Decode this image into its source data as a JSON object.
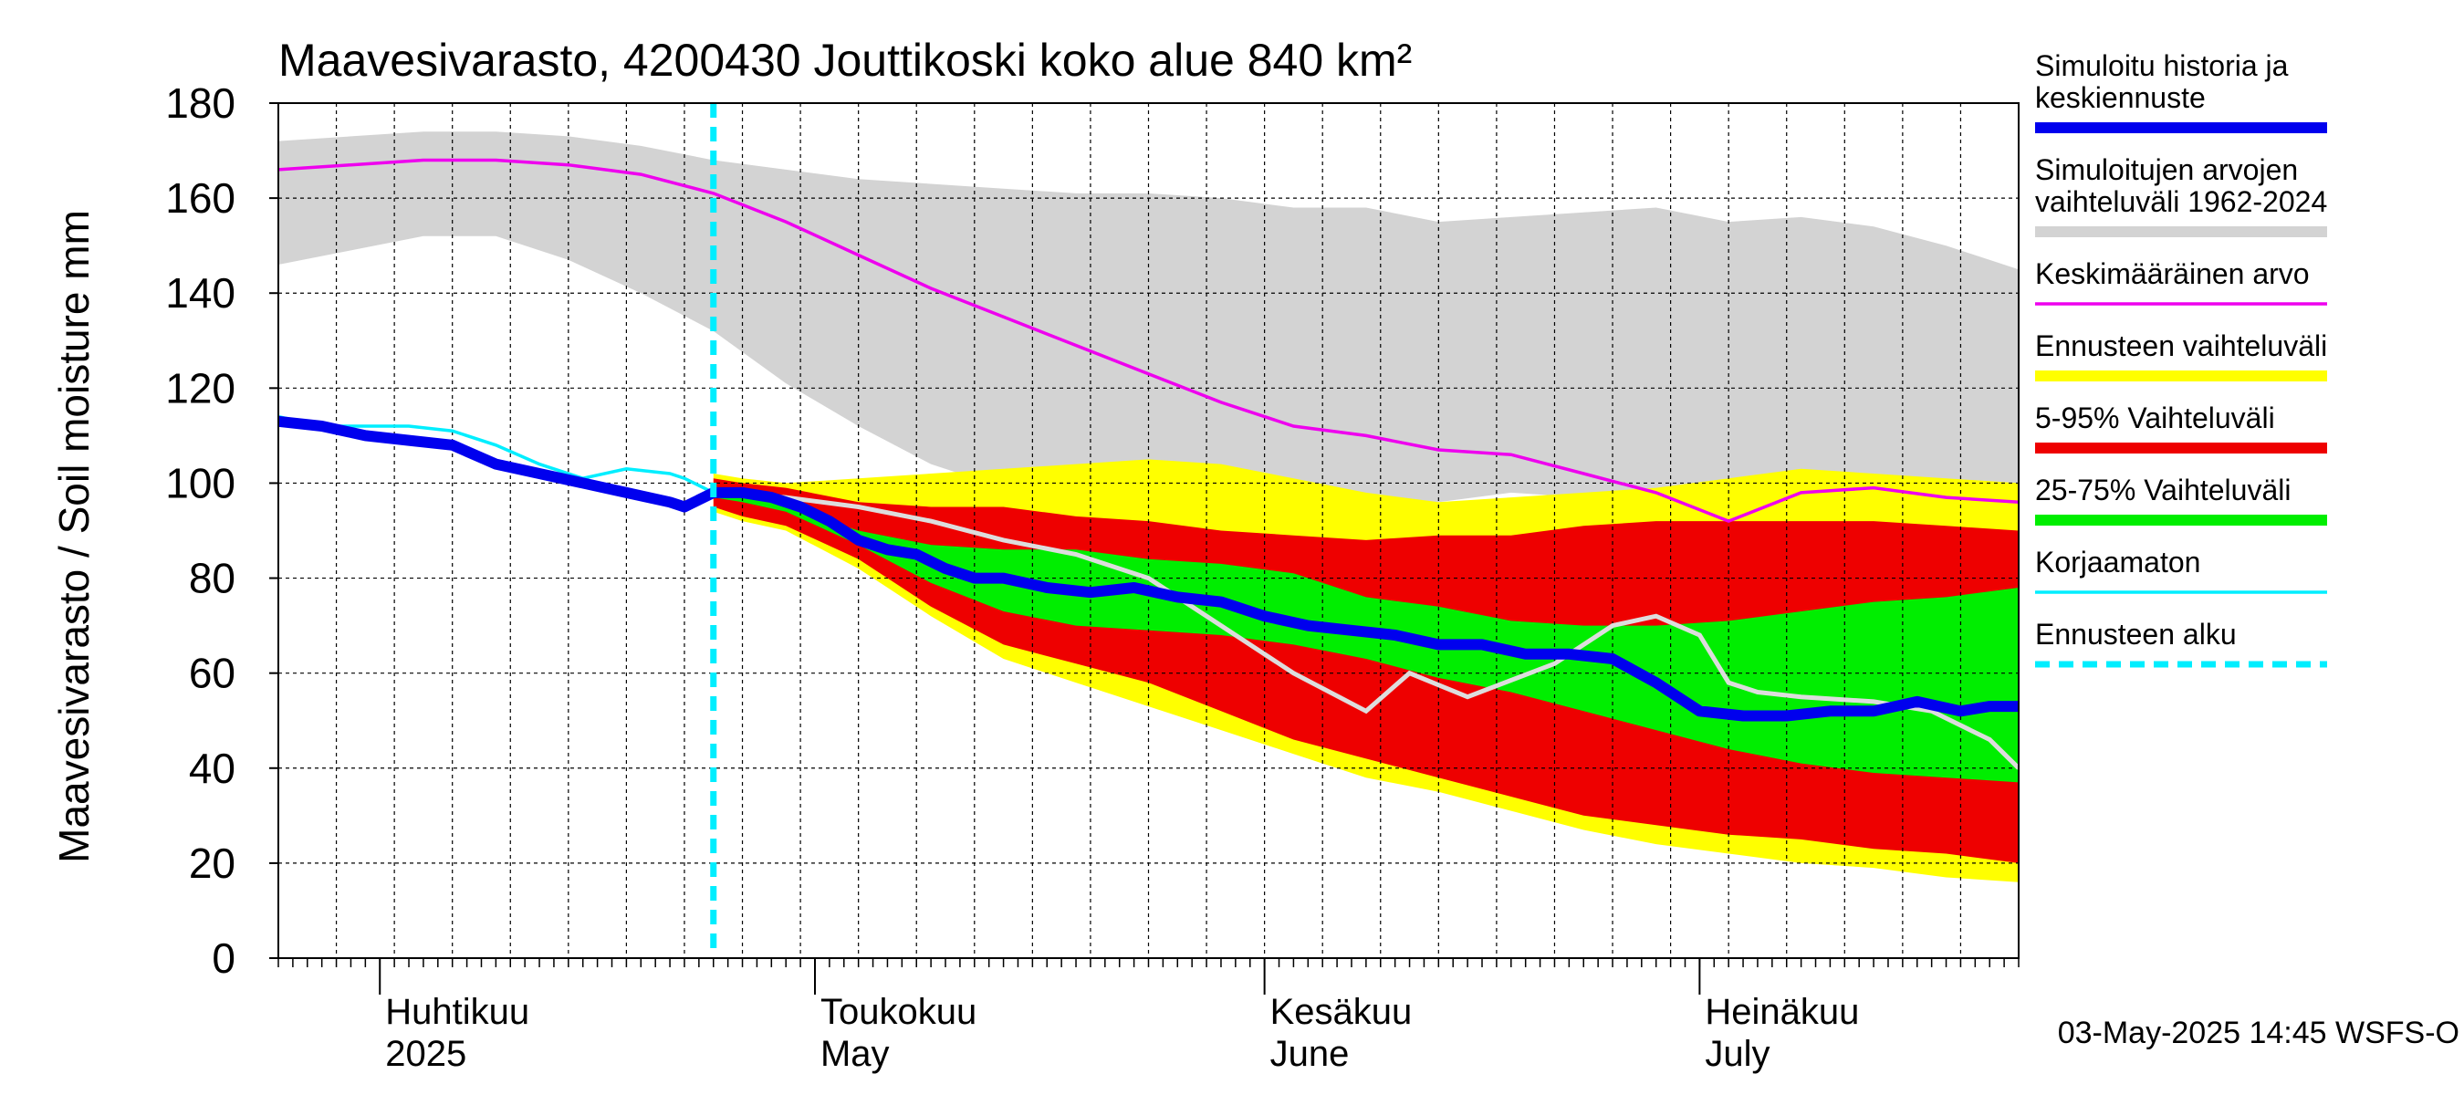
{
  "colors": {
    "history": "#0000ee",
    "range": "#d3d3d3",
    "mean": "#ee00ee",
    "forecast_range": "#ffff00",
    "p5_95": "#ee0000",
    "p25_75": "#00ee00",
    "uncorrected": "#00eeff",
    "forecast_start": "#00eeff",
    "gray_line": "#dddddd"
  },
  "chart_data": {
    "type": "area",
    "title": "Maavesivarasto, 4200430 Jouttikoski koko alue 840 km²",
    "ylabel": "Maavesivarasto / Soil moisture   mm",
    "ylim": [
      0,
      180
    ],
    "yticks": [
      "0",
      "20",
      "40",
      "60",
      "80",
      "100",
      "120",
      "140",
      "160",
      "180"
    ],
    "x_domain_days": [
      0,
      120
    ],
    "x_note": "x = days since 2025-03-25",
    "month_ticks": [
      {
        "fi": "Huhtikuu",
        "en": "2025",
        "x": 7
      },
      {
        "fi": "Toukokuu",
        "en": "May",
        "x": 37
      },
      {
        "fi": "Kesäkuu",
        "en": "June",
        "x": 68
      },
      {
        "fi": "Heinäkuu",
        "en": "July",
        "x": 98
      }
    ],
    "forecast_start_x": 30,
    "footer": "03-May-2025 14:45 WSFS-O",
    "legend": [
      {
        "key": "history",
        "label": "Simuloitu historia ja keskiennuste",
        "lines": [
          "Simuloitu historia ja",
          "keskiennuste"
        ],
        "style": "thick"
      },
      {
        "key": "range",
        "label": "Simuloitujen arvojen vaihteluväli 1962-2024",
        "lines": [
          "Simuloitujen arvojen",
          "vaihteluväli 1962-2024"
        ],
        "style": "thick"
      },
      {
        "key": "mean",
        "label": "Keskimääräinen arvo",
        "lines": [
          "Keskimääräinen arvo"
        ],
        "style": "thin"
      },
      {
        "key": "forecast_range",
        "label": "Ennusteen vaihteluväli",
        "lines": [
          "Ennusteen vaihteluväli"
        ],
        "style": "thick"
      },
      {
        "key": "p5_95",
        "label": "5-95% Vaihteluväli",
        "lines": [
          "5-95% Vaihteluväli"
        ],
        "style": "thick"
      },
      {
        "key": "p25_75",
        "label": "25-75% Vaihteluväli",
        "lines": [
          "25-75% Vaihteluväli"
        ],
        "style": "thick"
      },
      {
        "key": "uncorrected",
        "label": "Korjaamaton",
        "lines": [
          "Korjaamaton"
        ],
        "style": "thin"
      },
      {
        "key": "forecast_start",
        "label": "Ennusteen alku",
        "lines": [
          "Ennusteen alku"
        ],
        "style": "dashed"
      }
    ],
    "series": {
      "range_upper": {
        "x": [
          0,
          5,
          10,
          15,
          20,
          25,
          30,
          35,
          40,
          45,
          50,
          55,
          60,
          65,
          70,
          75,
          80,
          85,
          90,
          95,
          100,
          105,
          110,
          115,
          120
        ],
        "y": [
          172,
          173,
          174,
          174,
          173,
          171,
          168,
          166,
          164,
          163,
          162,
          161,
          161,
          160,
          158,
          158,
          155,
          156,
          157,
          158,
          155,
          156,
          154,
          150,
          145
        ]
      },
      "range_lower": {
        "x": [
          0,
          5,
          10,
          15,
          20,
          25,
          30,
          35,
          40,
          45,
          50,
          55,
          60,
          65,
          70,
          75,
          80,
          85,
          90,
          95,
          100,
          105,
          110,
          115,
          120
        ],
        "y": [
          146,
          149,
          152,
          152,
          147,
          140,
          132,
          121,
          112,
          104,
          99,
          97,
          95,
          93,
          95,
          95,
          96,
          98,
          97,
          97,
          95,
          95,
          95,
          94,
          94
        ]
      },
      "mean": {
        "x": [
          0,
          5,
          10,
          15,
          20,
          25,
          30,
          35,
          40,
          45,
          50,
          55,
          60,
          65,
          70,
          75,
          80,
          85,
          90,
          95,
          100,
          105,
          110,
          115,
          120
        ],
        "y": [
          166,
          167,
          168,
          168,
          167,
          165,
          161,
          155,
          148,
          141,
          135,
          129,
          123,
          117,
          112,
          110,
          107,
          106,
          102,
          98,
          92,
          98,
          99,
          97,
          96
        ]
      },
      "history_mean": {
        "x": [
          0,
          3,
          6,
          9,
          12,
          15,
          18,
          21,
          24,
          27,
          28,
          30,
          32,
          34,
          36,
          38,
          40,
          42,
          44,
          46,
          48,
          50,
          53,
          56,
          59,
          62,
          65,
          68,
          71,
          74,
          77,
          80,
          83,
          86,
          89,
          92,
          95,
          98,
          101,
          104,
          107,
          110,
          113,
          116,
          118,
          120
        ],
        "y": [
          113,
          112,
          110,
          109,
          108,
          104,
          102,
          100,
          98,
          96,
          95,
          98,
          98,
          97,
          95,
          92,
          88,
          86,
          85,
          82,
          80,
          80,
          78,
          77,
          78,
          76,
          75,
          72,
          70,
          69,
          68,
          66,
          66,
          64,
          64,
          63,
          58,
          52,
          51,
          51,
          52,
          52,
          54,
          52,
          53,
          53
        ]
      },
      "uncorrected": {
        "x": [
          0,
          3,
          6,
          9,
          12,
          15,
          18,
          21,
          24,
          27,
          28,
          30
        ],
        "y": [
          114,
          112,
          112,
          112,
          111,
          108,
          104,
          101,
          103,
          102,
          101,
          98
        ]
      },
      "gray_line": {
        "x": [
          30,
          35,
          40,
          45,
          50,
          55,
          60,
          65,
          70,
          75,
          78,
          82,
          88,
          92,
          95,
          98,
          100,
          102,
          105,
          110,
          114,
          118,
          120
        ],
        "y": [
          98,
          97,
          95,
          92,
          88,
          85,
          80,
          70,
          60,
          52,
          60,
          55,
          62,
          70,
          72,
          68,
          58,
          56,
          55,
          54,
          52,
          46,
          40
        ]
      },
      "fc_upper": {
        "x": [
          30,
          32,
          35,
          40,
          45,
          50,
          55,
          60,
          65,
          70,
          75,
          80,
          85,
          90,
          95,
          100,
          105,
          110,
          115,
          120
        ],
        "y": [
          102,
          101,
          100,
          101,
          102,
          103,
          104,
          105,
          104,
          101,
          98,
          96,
          97,
          98,
          99,
          101,
          103,
          102,
          101,
          100
        ]
      },
      "fc_lower": {
        "x": [
          30,
          32,
          35,
          40,
          45,
          50,
          55,
          60,
          65,
          70,
          75,
          80,
          85,
          90,
          95,
          100,
          105,
          110,
          115,
          120
        ],
        "y": [
          94,
          92,
          90,
          82,
          72,
          63,
          58,
          53,
          48,
          43,
          38,
          35,
          31,
          27,
          24,
          22,
          20,
          19,
          17,
          16
        ]
      },
      "p95": {
        "x": [
          30,
          32,
          35,
          40,
          45,
          50,
          55,
          60,
          65,
          70,
          75,
          80,
          85,
          90,
          95,
          100,
          105,
          110,
          115,
          120
        ],
        "y": [
          101,
          100,
          99,
          96,
          95,
          95,
          93,
          92,
          90,
          89,
          88,
          89,
          89,
          91,
          92,
          92,
          92,
          92,
          91,
          90
        ]
      },
      "p5": {
        "x": [
          30,
          32,
          35,
          40,
          45,
          50,
          55,
          60,
          65,
          70,
          75,
          80,
          85,
          90,
          95,
          100,
          105,
          110,
          115,
          120
        ],
        "y": [
          95,
          93,
          91,
          84,
          74,
          66,
          62,
          58,
          52,
          46,
          42,
          38,
          34,
          30,
          28,
          26,
          25,
          23,
          22,
          20
        ]
      },
      "p75": {
        "x": [
          30,
          32,
          35,
          40,
          45,
          50,
          55,
          60,
          65,
          70,
          75,
          80,
          85,
          90,
          95,
          100,
          105,
          110,
          115,
          120
        ],
        "y": [
          99,
          98,
          95,
          90,
          87,
          86,
          86,
          84,
          83,
          81,
          76,
          74,
          71,
          70,
          70,
          71,
          73,
          75,
          76,
          78
        ]
      },
      "p25": {
        "x": [
          30,
          32,
          35,
          40,
          45,
          50,
          55,
          60,
          65,
          70,
          75,
          80,
          85,
          90,
          95,
          100,
          105,
          110,
          115,
          120
        ],
        "y": [
          97,
          96,
          94,
          87,
          79,
          73,
          70,
          69,
          68,
          66,
          63,
          59,
          56,
          52,
          48,
          44,
          41,
          39,
          38,
          37
        ]
      }
    }
  }
}
